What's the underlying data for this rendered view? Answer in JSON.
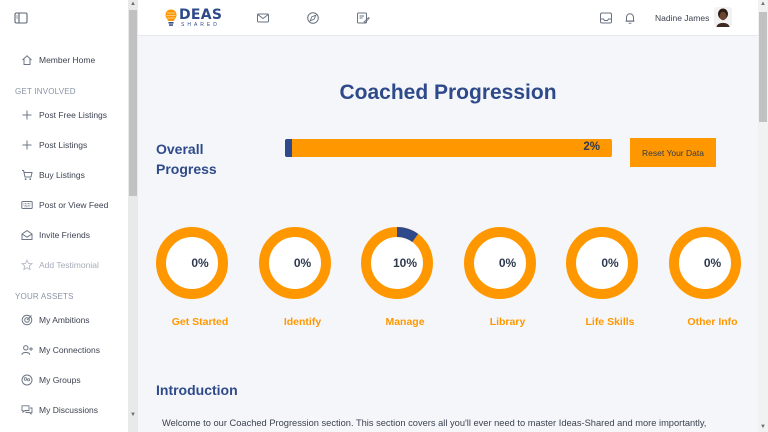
{
  "sidebar": {
    "items_top": [
      {
        "label": "Member Home",
        "icon": "home-icon"
      }
    ],
    "section_involved": "GET INVOLVED",
    "items_involved": [
      {
        "label": "Post Free Listings",
        "icon": "plus-icon"
      },
      {
        "label": "Post Listings",
        "icon": "plus-icon"
      },
      {
        "label": "Buy Listings",
        "icon": "cart-icon"
      },
      {
        "label": "Post or View Feed",
        "icon": "keyboard-icon"
      },
      {
        "label": "Invite Friends",
        "icon": "envelope-open-icon"
      },
      {
        "label": "Add Testimonial",
        "icon": "star-icon"
      }
    ],
    "section_assets": "YOUR ASSETS",
    "items_assets": [
      {
        "label": "My Ambitions",
        "icon": "target-icon"
      },
      {
        "label": "My Connections",
        "icon": "user-plus-icon"
      },
      {
        "label": "My Groups",
        "icon": "groups-icon"
      },
      {
        "label": "My Discussions",
        "icon": "discussion-icon"
      }
    ]
  },
  "header": {
    "logo_big": "DEAS",
    "logo_small": "SHARED",
    "user_name": "Nadine James"
  },
  "main": {
    "title": "Coached Progression",
    "overall_label": "Overall Progress",
    "overall_percent": "2%",
    "overall_value": 0.02,
    "reset_label": "Reset Your Data",
    "rings": [
      {
        "label": "Get Started",
        "percent": "0%",
        "value": 0
      },
      {
        "label": "Identify",
        "percent": "0%",
        "value": 0
      },
      {
        "label": "Manage",
        "percent": "10%",
        "value": 0.1
      },
      {
        "label": "Library",
        "percent": "0%",
        "value": 0
      },
      {
        "label": "Life Skills",
        "percent": "0%",
        "value": 0
      },
      {
        "label": "Other Info",
        "percent": "0%",
        "value": 0
      }
    ],
    "intro_title": "Introduction",
    "intro_text": "Welcome to our Coached Progression section. This section covers all you'll ever need to master Ideas-Shared and more importantly,"
  },
  "colors": {
    "accent": "#ff9800",
    "brand": "#2f4a8a"
  }
}
